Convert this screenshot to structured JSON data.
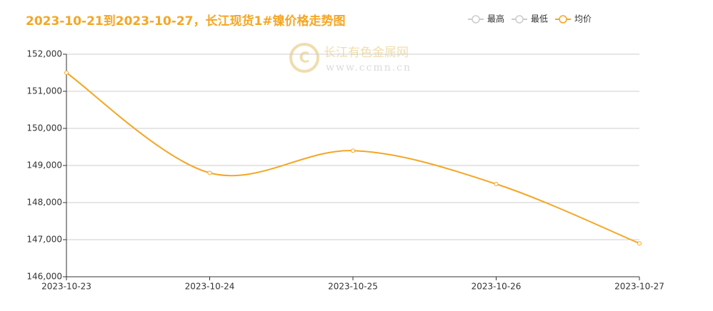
{
  "chart_data": {
    "type": "line",
    "title": "2023-10-21到2023-10-27，长江现货1#镍价格走势图",
    "watermark": {
      "text": "长江有色金属网",
      "url": "www.ccmn.cn"
    },
    "categories": [
      "2023-10-23",
      "2023-10-24",
      "2023-10-25",
      "2023-10-26",
      "2023-10-27"
    ],
    "series": [
      {
        "name": "最高",
        "color": "#cccccc",
        "selected": false
      },
      {
        "name": "最低",
        "color": "#cccccc",
        "selected": false
      },
      {
        "name": "均价",
        "color": "#f5a623",
        "selected": true,
        "values": [
          151500,
          148800,
          149400,
          148500,
          146900
        ]
      }
    ],
    "ylim": [
      146000,
      152000
    ],
    "yticks": [
      {
        "value": 146000,
        "label": "146,000"
      },
      {
        "value": 147000,
        "label": "147,000"
      },
      {
        "value": 148000,
        "label": "148,000"
      },
      {
        "value": 149000,
        "label": "149,000"
      },
      {
        "value": 150000,
        "label": "150,000"
      },
      {
        "value": 151000,
        "label": "151,000"
      },
      {
        "value": 152000,
        "label": "152,000"
      }
    ],
    "grid": true,
    "smooth": true,
    "legend_position": "top-right"
  }
}
